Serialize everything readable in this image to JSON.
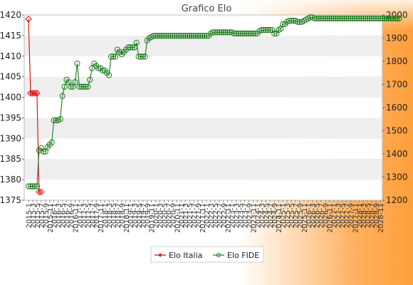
{
  "chart_data": {
    "type": "line",
    "title": "Grafico Elo",
    "xlabel": "",
    "ylabel_left": "",
    "ylabel_right": "",
    "ylim_left": [
      1375,
      1420
    ],
    "ylim_right": [
      1200,
      2000
    ],
    "yticks_left": [
      1375,
      1380,
      1385,
      1390,
      1395,
      1400,
      1405,
      1410,
      1415,
      1420
    ],
    "yticks_right": [
      1200,
      1300,
      1400,
      1500,
      1600,
      1700,
      1800,
      1900,
      2000
    ],
    "grid": true,
    "grid_style": "alternating horizontal bands",
    "legend_position": "bottom-center",
    "x_tick_label_format": "year-month (rotated 90°)",
    "x_first_tick_label": "2015-1",
    "x_last_tick_label": "2025-12",
    "x_points": 168,
    "series": [
      {
        "name": "Elo Italia",
        "axis": "left",
        "color": "#dd0000",
        "marker": "diamond",
        "values": [
          1419,
          1401,
          1401,
          1401,
          1401,
          1377,
          1377
        ]
      },
      {
        "name": "Elo FIDE",
        "axis": "right",
        "color": "#1a7a1a",
        "marker": "circle",
        "values": [
          1260,
          1260,
          1260,
          1260,
          1260,
          1415,
          1425,
          1410,
          1410,
          1430,
          1440,
          1450,
          1545,
          1545,
          1545,
          1550,
          1650,
          1690,
          1720,
          1710,
          1690,
          1690,
          1710,
          1790,
          1690,
          1690,
          1690,
          1690,
          1690,
          1720,
          1770,
          1790,
          1780,
          1770,
          1770,
          1760,
          1760,
          1750,
          1740,
          1820,
          1820,
          1820,
          1850,
          1840,
          1830,
          1840,
          1850,
          1860,
          1860,
          1860,
          1860,
          1880,
          1820,
          1820,
          1820,
          1820,
          1890,
          1900,
          1905,
          1910,
          1910,
          1910,
          1910,
          1910,
          1910,
          1910,
          1910,
          1910,
          1910,
          1910,
          1910,
          1910,
          1910,
          1910,
          1910,
          1910,
          1910,
          1910,
          1910,
          1910,
          1910,
          1910,
          1910,
          1910,
          1910,
          1910,
          1920,
          1925,
          1925,
          1925,
          1925,
          1925,
          1925,
          1925,
          1925,
          1925,
          1925,
          1920,
          1920,
          1920,
          1920,
          1920,
          1920,
          1920,
          1920,
          1920,
          1920,
          1920,
          1920,
          1930,
          1935,
          1935,
          1935,
          1935,
          1935,
          1935,
          1920,
          1920,
          1935,
          1940,
          1960,
          1960,
          1970,
          1975,
          1975,
          1975,
          1975,
          1970,
          1970,
          1970,
          1975,
          1980,
          1985,
          1990,
          1990,
          1985,
          1985,
          1985,
          1985,
          1985,
          1985,
          1985,
          1985,
          1985,
          1985,
          1985,
          1985,
          1985,
          1985,
          1985,
          1985,
          1985,
          1985,
          1985,
          1985,
          1985,
          1985,
          1985,
          1985,
          1985,
          1985,
          1985,
          1985,
          1985,
          1985,
          1985,
          1985,
          1985,
          1985,
          1985,
          1985,
          1985,
          1985,
          1985,
          1985,
          1985
        ]
      }
    ]
  }
}
